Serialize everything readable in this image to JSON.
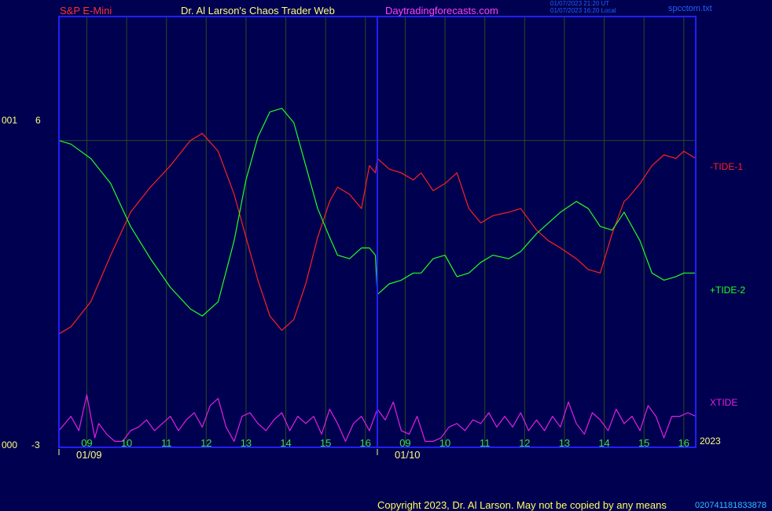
{
  "header": {
    "instrument": "S&P E-Mini",
    "title": "Dr. Al Larson's Chaos Trader Web",
    "site": "Daytradingforecasts.com",
    "stamp_line1": "01/07/2023 21:20 UT",
    "stamp_line2": "01/07/2023 16:20 Local",
    "filename": "spcctom.txt"
  },
  "axis": {
    "left_top_prefix": "001",
    "left_top_value": "6",
    "left_bottom_prefix": "000",
    "left_bottom_value": "-3",
    "year": "2023"
  },
  "footer": {
    "copyright": "Copyright 2023, Dr. Al Larson. May not be copied by any means",
    "code": "020741181833878"
  },
  "colors": {
    "background": "#000050",
    "frame": "#2020ff",
    "grid": "#2a4a1a",
    "tide1": "#ff2020",
    "tide2": "#20ff20",
    "xtide": "#e020e0",
    "hour_labels": "#40e040",
    "text_light": "#ffff80"
  },
  "chart_data": {
    "type": "line",
    "title": "",
    "hour_labels": [
      "09",
      "10",
      "11",
      "12",
      "13",
      "14",
      "15",
      "16",
      "09",
      "10",
      "11",
      "12",
      "13",
      "14",
      "15",
      "16"
    ],
    "day_labels": [
      "01/09",
      "01/10"
    ],
    "ylim": [
      -3,
      6
    ],
    "series": [
      {
        "name": "-TIDE-1",
        "x": [
          0,
          0.3,
          0.8,
          1.3,
          1.8,
          2.3,
          2.8,
          3.3,
          3.6,
          4.0,
          4.4,
          4.7,
          5.0,
          5.3,
          5.6,
          5.9,
          6.2,
          6.5,
          6.8,
          7.0,
          7.3,
          7.6,
          7.8,
          7.95,
          8.0,
          8.3,
          8.6,
          8.9,
          9.1,
          9.4,
          9.7,
          10.0,
          10.3,
          10.6,
          10.9,
          11.3,
          11.6,
          12.0,
          12.3,
          12.6,
          13.0,
          13.3,
          13.6,
          13.9,
          14.2,
          14.3,
          14.6,
          14.9,
          15.2,
          15.5,
          15.7,
          16.0
        ],
        "y": [
          0.1,
          0.3,
          1.0,
          2.3,
          3.5,
          4.2,
          4.8,
          5.5,
          5.7,
          5.2,
          4.0,
          2.8,
          1.6,
          0.6,
          0.2,
          0.5,
          1.5,
          2.8,
          3.8,
          4.2,
          4.0,
          3.6,
          4.8,
          4.6,
          5.0,
          4.7,
          4.6,
          4.4,
          4.6,
          4.1,
          4.3,
          4.6,
          3.6,
          3.2,
          3.4,
          3.5,
          3.6,
          3.0,
          2.7,
          2.5,
          2.2,
          1.9,
          1.8,
          2.9,
          3.8,
          3.9,
          4.3,
          4.8,
          5.1,
          5.0,
          5.2,
          5.0
        ]
      },
      {
        "name": "+TIDE-2",
        "x": [
          0,
          0.3,
          0.8,
          1.3,
          1.8,
          2.3,
          2.8,
          3.3,
          3.6,
          4.0,
          4.4,
          4.7,
          5.0,
          5.3,
          5.6,
          5.9,
          6.2,
          6.5,
          6.8,
          7.0,
          7.3,
          7.6,
          7.8,
          7.95,
          8.0,
          8.3,
          8.6,
          8.9,
          9.1,
          9.4,
          9.7,
          10.0,
          10.3,
          10.6,
          10.9,
          11.3,
          11.6,
          12.0,
          12.3,
          12.6,
          13.0,
          13.3,
          13.6,
          13.9,
          14.2,
          14.3,
          14.6,
          14.9,
          15.2,
          15.5,
          15.7,
          16.0
        ],
        "y": [
          5.5,
          5.4,
          5.0,
          4.3,
          3.1,
          2.2,
          1.4,
          0.8,
          0.6,
          1.0,
          2.7,
          4.4,
          5.6,
          6.3,
          6.4,
          6.0,
          4.8,
          3.6,
          2.8,
          2.3,
          2.2,
          2.5,
          2.5,
          2.3,
          1.2,
          1.5,
          1.6,
          1.8,
          1.8,
          2.2,
          2.3,
          1.7,
          1.8,
          2.1,
          2.3,
          2.2,
          2.4,
          2.9,
          3.2,
          3.5,
          3.8,
          3.6,
          3.1,
          3.0,
          3.5,
          3.3,
          2.7,
          1.8,
          1.6,
          1.7,
          1.8,
          1.8
        ]
      },
      {
        "name": "XTIDE",
        "x": [
          0,
          0.3,
          0.5,
          0.7,
          0.9,
          1.0,
          1.2,
          1.4,
          1.6,
          1.8,
          2.0,
          2.2,
          2.4,
          2.6,
          2.8,
          3.0,
          3.2,
          3.4,
          3.6,
          3.8,
          4.0,
          4.2,
          4.4,
          4.6,
          4.8,
          5.0,
          5.2,
          5.4,
          5.6,
          5.8,
          6.0,
          6.2,
          6.4,
          6.6,
          6.8,
          7.0,
          7.2,
          7.4,
          7.6,
          7.8,
          8.0,
          8.2,
          8.4,
          8.6,
          8.8,
          9.0,
          9.2,
          9.4,
          9.6,
          9.8,
          10.0,
          10.2,
          10.4,
          10.6,
          10.8,
          11.0,
          11.2,
          11.4,
          11.6,
          11.8,
          12.0,
          12.2,
          12.4,
          12.6,
          12.8,
          13.0,
          13.2,
          13.4,
          13.6,
          13.8,
          14.0,
          14.2,
          14.4,
          14.6,
          14.8,
          15.0,
          15.2,
          15.4,
          15.6,
          15.8,
          16.0
        ],
        "y": [
          -2.6,
          -2.2,
          -2.6,
          -1.6,
          -2.8,
          -2.4,
          -2.7,
          -2.9,
          -2.9,
          -2.6,
          -2.5,
          -2.3,
          -2.6,
          -2.4,
          -2.2,
          -2.6,
          -2.3,
          -2.1,
          -2.5,
          -1.9,
          -1.7,
          -2.5,
          -2.9,
          -2.2,
          -2.1,
          -2.4,
          -2.6,
          -2.3,
          -2.1,
          -2.6,
          -2.2,
          -2.4,
          -2.2,
          -2.7,
          -2.0,
          -2.4,
          -2.9,
          -2.4,
          -2.2,
          -2.6,
          -2.0,
          -2.3,
          -1.8,
          -2.6,
          -2.7,
          -2.2,
          -2.9,
          -2.9,
          -2.8,
          -2.5,
          -2.4,
          -2.6,
          -2.3,
          -2.4,
          -2.1,
          -2.5,
          -2.2,
          -2.5,
          -2.1,
          -2.6,
          -2.3,
          -2.6,
          -2.2,
          -2.5,
          -1.8,
          -2.4,
          -2.7,
          -2.1,
          -2.3,
          -2.6,
          -2.0,
          -2.4,
          -2.2,
          -2.6,
          -1.9,
          -2.2,
          -2.8,
          -2.2,
          -2.2,
          -2.1,
          -2.2
        ]
      }
    ],
    "horizontal_reference_y": 5.5,
    "grid": true
  }
}
